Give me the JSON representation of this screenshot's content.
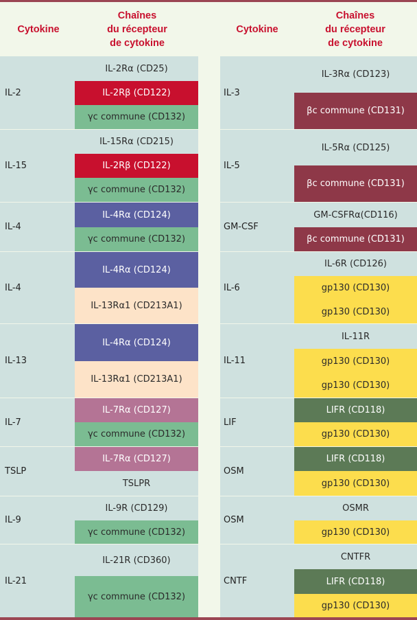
{
  "header": {
    "cytokine_label": "Cytokine",
    "chains_line1": "Chaînes",
    "chains_line2": "du récepteur",
    "chains_line3": "de cytokine"
  },
  "colors": {
    "plain": "#cfe1df",
    "beta_red": "#c8102e",
    "gamma_green": "#7bbc92",
    "il4_blue": "#5b60a1",
    "il13_peach": "#fde3c8",
    "il7_mauve": "#b47495",
    "beta_common_maroon": "#8e3848",
    "gp130_yellow": "#fcdd4d",
    "lifr_green": "#5c7a56"
  },
  "left": [
    {
      "cytokine": "IL-2",
      "chains": [
        {
          "label": "IL-2Rα (CD25)",
          "color": "plain"
        },
        {
          "label": "IL-2Rβ (CD122)",
          "color": "beta_red"
        },
        {
          "label": "γc commune (CD132)",
          "color": "gamma_green"
        }
      ]
    },
    {
      "cytokine": "IL-15",
      "chains": [
        {
          "label": "IL-15Rα (CD215)",
          "color": "plain"
        },
        {
          "label": "IL-2Rβ (CD122)",
          "color": "beta_red"
        },
        {
          "label": "γc commune (CD132)",
          "color": "gamma_green"
        }
      ]
    },
    {
      "cytokine": "IL-4",
      "chains": [
        {
          "label": "IL-4Rα (CD124)",
          "color": "il4_blue"
        },
        {
          "label": "γc commune (CD132)",
          "color": "gamma_green"
        }
      ]
    },
    {
      "cytokine": "IL-4",
      "chains": [
        {
          "label": "IL-4Rα (CD124)",
          "color": "il4_blue"
        },
        {
          "label": "IL-13Rα1 (CD213A1)",
          "color": "il13_peach"
        }
      ]
    },
    {
      "cytokine": "IL-13",
      "chains": [
        {
          "label": "IL-4Rα (CD124)",
          "color": "il4_blue"
        },
        {
          "label": "IL-13Rα1 (CD213A1)",
          "color": "il13_peach"
        }
      ]
    },
    {
      "cytokine": "IL-7",
      "chains": [
        {
          "label": "IL-7Rα (CD127)",
          "color": "il7_mauve"
        },
        {
          "label": "γc commune (CD132)",
          "color": "gamma_green"
        }
      ]
    },
    {
      "cytokine": "TSLP",
      "chains": [
        {
          "label": "IL-7Rα (CD127)",
          "color": "il7_mauve"
        },
        {
          "label": "TSLPR",
          "color": "plain"
        }
      ]
    },
    {
      "cytokine": "IL-9",
      "chains": [
        {
          "label": "IL-9R (CD129)",
          "color": "plain"
        },
        {
          "label": "γc commune (CD132)",
          "color": "gamma_green"
        }
      ]
    },
    {
      "cytokine": "IL-21",
      "chains": [
        {
          "label": "IL-21R (CD360)",
          "color": "plain"
        },
        {
          "label": "γc commune (CD132)",
          "color": "gamma_green"
        }
      ]
    }
  ],
  "right": [
    {
      "cytokine": "IL-3",
      "chains": [
        {
          "label": "IL-3Rα (CD123)",
          "color": "plain"
        },
        {
          "label": "βc commune (CD131)",
          "color": "beta_common_maroon"
        }
      ]
    },
    {
      "cytokine": "IL-5",
      "chains": [
        {
          "label": "IL-5Rα (CD125)",
          "color": "plain"
        },
        {
          "label": "βc commune (CD131)",
          "color": "beta_common_maroon"
        }
      ]
    },
    {
      "cytokine": "GM-CSF",
      "chains": [
        {
          "label": "GM-CSFRα(CD116)",
          "color": "plain"
        },
        {
          "label": "βc commune (CD131)",
          "color": "beta_common_maroon"
        }
      ]
    },
    {
      "cytokine": "IL-6",
      "chains": [
        {
          "label": "IL-6R (CD126)",
          "color": "plain"
        },
        {
          "label": "gp130 (CD130)",
          "color": "gp130_yellow"
        },
        {
          "label": "gp130 (CD130)",
          "color": "gp130_yellow"
        }
      ]
    },
    {
      "cytokine": "IL-11",
      "chains": [
        {
          "label": "IL-11R",
          "color": "plain"
        },
        {
          "label": "gp130 (CD130)",
          "color": "gp130_yellow"
        },
        {
          "label": "gp130 (CD130)",
          "color": "gp130_yellow"
        }
      ]
    },
    {
      "cytokine": "LIF",
      "chains": [
        {
          "label": "LIFR (CD118)",
          "color": "lifr_green"
        },
        {
          "label": "gp130 (CD130)",
          "color": "gp130_yellow"
        }
      ]
    },
    {
      "cytokine": "OSM",
      "chains": [
        {
          "label": "LIFR (CD118)",
          "color": "lifr_green"
        },
        {
          "label": "gp130 (CD130)",
          "color": "gp130_yellow"
        }
      ]
    },
    {
      "cytokine": "OSM",
      "chains": [
        {
          "label": "OSMR",
          "color": "plain"
        },
        {
          "label": "gp130 (CD130)",
          "color": "gp130_yellow"
        }
      ]
    },
    {
      "cytokine": "CNTF",
      "chains": [
        {
          "label": "CNTFR",
          "color": "plain"
        },
        {
          "label": "LIFR (CD118)",
          "color": "lifr_green"
        },
        {
          "label": "gp130 (CD130)",
          "color": "gp130_yellow"
        }
      ]
    }
  ]
}
